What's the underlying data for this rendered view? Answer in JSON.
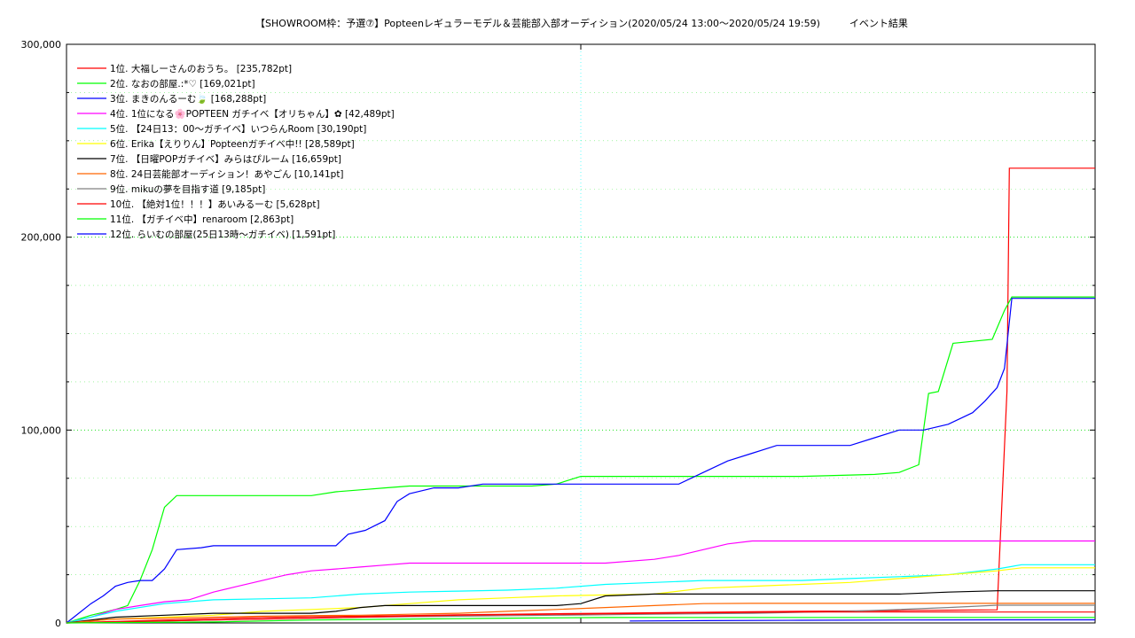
{
  "chart_data": {
    "type": "line",
    "title": "【SHOWROOM枠：予選⑦】Popteenレギュラーモデル＆芸能部入部オーディション(2020/05/24 13:00～2020/05/24 19:59)　　　イベント結果",
    "xlabel": "",
    "ylabel": "",
    "xlim": [
      0,
      420
    ],
    "ylim": [
      0,
      300000
    ],
    "yticks": [
      0,
      100000,
      200000,
      300000
    ],
    "ytick_labels": [
      "0",
      "100,000",
      "200,000",
      "300,000"
    ],
    "grid": true,
    "legend_position": "top-left",
    "series": [
      {
        "name": "1位. 大福しーさんのおうち。 [235,782pt]",
        "color": "#ff0000",
        "points": [
          [
            0,
            0
          ],
          [
            20,
            800
          ],
          [
            40,
            1500
          ],
          [
            60,
            2200
          ],
          [
            80,
            2800
          ],
          [
            100,
            3200
          ],
          [
            120,
            3500
          ],
          [
            140,
            3800
          ],
          [
            160,
            4200
          ],
          [
            180,
            4500
          ],
          [
            200,
            4800
          ],
          [
            220,
            5000
          ],
          [
            240,
            5300
          ],
          [
            260,
            5500
          ],
          [
            280,
            5800
          ],
          [
            300,
            6000
          ],
          [
            320,
            6200
          ],
          [
            340,
            6400
          ],
          [
            360,
            6600
          ],
          [
            380,
            6800
          ],
          [
            384,
            120000
          ],
          [
            385,
            235782
          ],
          [
            420,
            235782
          ]
        ]
      },
      {
        "name": "2位. なおの部屋.:*♡ [169,021pt]",
        "color": "#00ff00",
        "points": [
          [
            0,
            0
          ],
          [
            10,
            4000
          ],
          [
            20,
            7000
          ],
          [
            25,
            9000
          ],
          [
            30,
            22000
          ],
          [
            35,
            38000
          ],
          [
            40,
            60000
          ],
          [
            45,
            66000
          ],
          [
            60,
            66000
          ],
          [
            80,
            66000
          ],
          [
            90,
            66000
          ],
          [
            100,
            66000
          ],
          [
            110,
            68000
          ],
          [
            120,
            69000
          ],
          [
            130,
            70000
          ],
          [
            140,
            71000
          ],
          [
            160,
            71000
          ],
          [
            180,
            71000
          ],
          [
            190,
            71000
          ],
          [
            200,
            72000
          ],
          [
            210,
            76000
          ],
          [
            220,
            76000
          ],
          [
            240,
            76000
          ],
          [
            260,
            76000
          ],
          [
            280,
            76000
          ],
          [
            300,
            76000
          ],
          [
            330,
            77000
          ],
          [
            340,
            78000
          ],
          [
            348,
            82000
          ],
          [
            352,
            119000
          ],
          [
            356,
            120000
          ],
          [
            362,
            145000
          ],
          [
            370,
            146000
          ],
          [
            378,
            147000
          ],
          [
            383,
            162000
          ],
          [
            386,
            169021
          ],
          [
            420,
            169021
          ]
        ]
      },
      {
        "name": "3位. まきのんるーむ🍃 [168,288pt]",
        "color": "#0000ff",
        "points": [
          [
            0,
            0
          ],
          [
            5,
            5000
          ],
          [
            10,
            10000
          ],
          [
            15,
            14000
          ],
          [
            20,
            19000
          ],
          [
            25,
            21000
          ],
          [
            30,
            22000
          ],
          [
            35,
            22000
          ],
          [
            40,
            28000
          ],
          [
            45,
            38000
          ],
          [
            55,
            39000
          ],
          [
            60,
            40000
          ],
          [
            80,
            40000
          ],
          [
            100,
            40000
          ],
          [
            110,
            40000
          ],
          [
            115,
            46000
          ],
          [
            122,
            48000
          ],
          [
            130,
            53000
          ],
          [
            135,
            63000
          ],
          [
            140,
            67000
          ],
          [
            150,
            70000
          ],
          [
            160,
            70000
          ],
          [
            170,
            72000
          ],
          [
            180,
            72000
          ],
          [
            200,
            72000
          ],
          [
            220,
            72000
          ],
          [
            240,
            72000
          ],
          [
            250,
            72000
          ],
          [
            260,
            78000
          ],
          [
            270,
            84000
          ],
          [
            280,
            88000
          ],
          [
            290,
            92000
          ],
          [
            300,
            92000
          ],
          [
            320,
            92000
          ],
          [
            330,
            96000
          ],
          [
            340,
            100000
          ],
          [
            350,
            100000
          ],
          [
            360,
            103000
          ],
          [
            370,
            109000
          ],
          [
            375,
            115000
          ],
          [
            380,
            122000
          ],
          [
            383,
            132000
          ],
          [
            386,
            168288
          ],
          [
            420,
            168288
          ]
        ]
      },
      {
        "name": "4位. 1位になる🌸POPTEEN ガチイベ【オリちゃん】✿ [42,489pt]",
        "color": "#ff00ff",
        "points": [
          [
            0,
            0
          ],
          [
            10,
            3000
          ],
          [
            20,
            7000
          ],
          [
            30,
            9000
          ],
          [
            40,
            11000
          ],
          [
            50,
            12000
          ],
          [
            60,
            16000
          ],
          [
            70,
            19000
          ],
          [
            80,
            22000
          ],
          [
            90,
            25000
          ],
          [
            100,
            27000
          ],
          [
            110,
            28000
          ],
          [
            120,
            29000
          ],
          [
            130,
            30000
          ],
          [
            140,
            31000
          ],
          [
            160,
            31000
          ],
          [
            180,
            31000
          ],
          [
            200,
            31000
          ],
          [
            220,
            31000
          ],
          [
            240,
            33000
          ],
          [
            250,
            35000
          ],
          [
            260,
            38000
          ],
          [
            270,
            41000
          ],
          [
            280,
            42489
          ],
          [
            300,
            42489
          ],
          [
            420,
            42489
          ]
        ]
      },
      {
        "name": "5位. 【24日13：00～ガチイベ】いつらんRoom [30,190pt]",
        "color": "#00ffff",
        "points": [
          [
            0,
            0
          ],
          [
            20,
            6000
          ],
          [
            40,
            10000
          ],
          [
            60,
            12000
          ],
          [
            80,
            12500
          ],
          [
            100,
            13000
          ],
          [
            120,
            15000
          ],
          [
            140,
            16000
          ],
          [
            160,
            16500
          ],
          [
            180,
            17000
          ],
          [
            200,
            18000
          ],
          [
            220,
            20000
          ],
          [
            240,
            21000
          ],
          [
            260,
            22000
          ],
          [
            280,
            22000
          ],
          [
            300,
            22000
          ],
          [
            320,
            23000
          ],
          [
            340,
            24000
          ],
          [
            360,
            25000
          ],
          [
            380,
            28000
          ],
          [
            390,
            30190
          ],
          [
            420,
            30190
          ]
        ]
      },
      {
        "name": "6位. Erika【えりりん】Popteenガチイベ中!! [28,589pt]",
        "color": "#ffff00",
        "points": [
          [
            0,
            0
          ],
          [
            20,
            2000
          ],
          [
            40,
            3000
          ],
          [
            60,
            4000
          ],
          [
            80,
            6000
          ],
          [
            100,
            7000
          ],
          [
            120,
            8000
          ],
          [
            140,
            10000
          ],
          [
            160,
            12000
          ],
          [
            180,
            13000
          ],
          [
            200,
            14000
          ],
          [
            220,
            14500
          ],
          [
            240,
            15000
          ],
          [
            260,
            18000
          ],
          [
            280,
            19000
          ],
          [
            300,
            20000
          ],
          [
            320,
            21000
          ],
          [
            340,
            23000
          ],
          [
            360,
            25000
          ],
          [
            380,
            27000
          ],
          [
            390,
            28589
          ],
          [
            420,
            28589
          ]
        ]
      },
      {
        "name": "7位. 【日曜POPガチイベ】みらはぴルーム [16,659pt]",
        "color": "#000000",
        "points": [
          [
            0,
            0
          ],
          [
            20,
            3000
          ],
          [
            40,
            4000
          ],
          [
            60,
            5000
          ],
          [
            80,
            5000
          ],
          [
            100,
            5000
          ],
          [
            110,
            6000
          ],
          [
            120,
            8000
          ],
          [
            130,
            9000
          ],
          [
            140,
            9000
          ],
          [
            160,
            9000
          ],
          [
            180,
            9000
          ],
          [
            200,
            9000
          ],
          [
            210,
            10000
          ],
          [
            220,
            14000
          ],
          [
            240,
            15000
          ],
          [
            260,
            15000
          ],
          [
            280,
            15000
          ],
          [
            300,
            15000
          ],
          [
            320,
            15000
          ],
          [
            340,
            15000
          ],
          [
            360,
            16000
          ],
          [
            380,
            16659
          ],
          [
            420,
            16659
          ]
        ]
      },
      {
        "name": "8位. 24日芸能部オーディション！あやごん [10,141pt]",
        "color": "#ff6600",
        "points": [
          [
            0,
            0
          ],
          [
            20,
            2000
          ],
          [
            40,
            2500
          ],
          [
            60,
            3000
          ],
          [
            80,
            3500
          ],
          [
            100,
            3800
          ],
          [
            120,
            4000
          ],
          [
            140,
            4500
          ],
          [
            160,
            5000
          ],
          [
            180,
            6000
          ],
          [
            200,
            7000
          ],
          [
            220,
            8000
          ],
          [
            240,
            9000
          ],
          [
            260,
            10000
          ],
          [
            280,
            10141
          ],
          [
            420,
            10141
          ]
        ]
      },
      {
        "name": "9位. mikuの夢を目指す道 [9,185pt]",
        "color": "#808080",
        "points": [
          [
            0,
            0
          ],
          [
            40,
            1000
          ],
          [
            80,
            2000
          ],
          [
            120,
            3000
          ],
          [
            160,
            3500
          ],
          [
            200,
            4000
          ],
          [
            240,
            4500
          ],
          [
            280,
            5000
          ],
          [
            320,
            6000
          ],
          [
            340,
            7000
          ],
          [
            360,
            8000
          ],
          [
            380,
            9185
          ],
          [
            420,
            9185
          ]
        ]
      },
      {
        "name": "10位. 【絶対1位！！！】あいみるーむ [5,628pt]",
        "color": "#ff0000",
        "points": [
          [
            0,
            0
          ],
          [
            40,
            1000
          ],
          [
            80,
            2000
          ],
          [
            120,
            3000
          ],
          [
            160,
            4000
          ],
          [
            200,
            4500
          ],
          [
            240,
            5000
          ],
          [
            280,
            5500
          ],
          [
            300,
            5628
          ],
          [
            420,
            5628
          ]
        ]
      },
      {
        "name": "11位. 【ガチイベ中】renaroom [2,863pt]",
        "color": "#00ff00",
        "points": [
          [
            0,
            0
          ],
          [
            60,
            500
          ],
          [
            100,
            1500
          ],
          [
            140,
            2000
          ],
          [
            180,
            2500
          ],
          [
            220,
            2800
          ],
          [
            260,
            2863
          ],
          [
            420,
            2863
          ]
        ]
      },
      {
        "name": "12位. らいむの部屋(25日13時～ガチイベ) [1,591pt]",
        "color": "#0000ff",
        "points": [
          [
            230,
            1000
          ],
          [
            260,
            1200
          ],
          [
            300,
            1400
          ],
          [
            340,
            1500
          ],
          [
            380,
            1591
          ],
          [
            420,
            1591
          ]
        ]
      }
    ]
  }
}
